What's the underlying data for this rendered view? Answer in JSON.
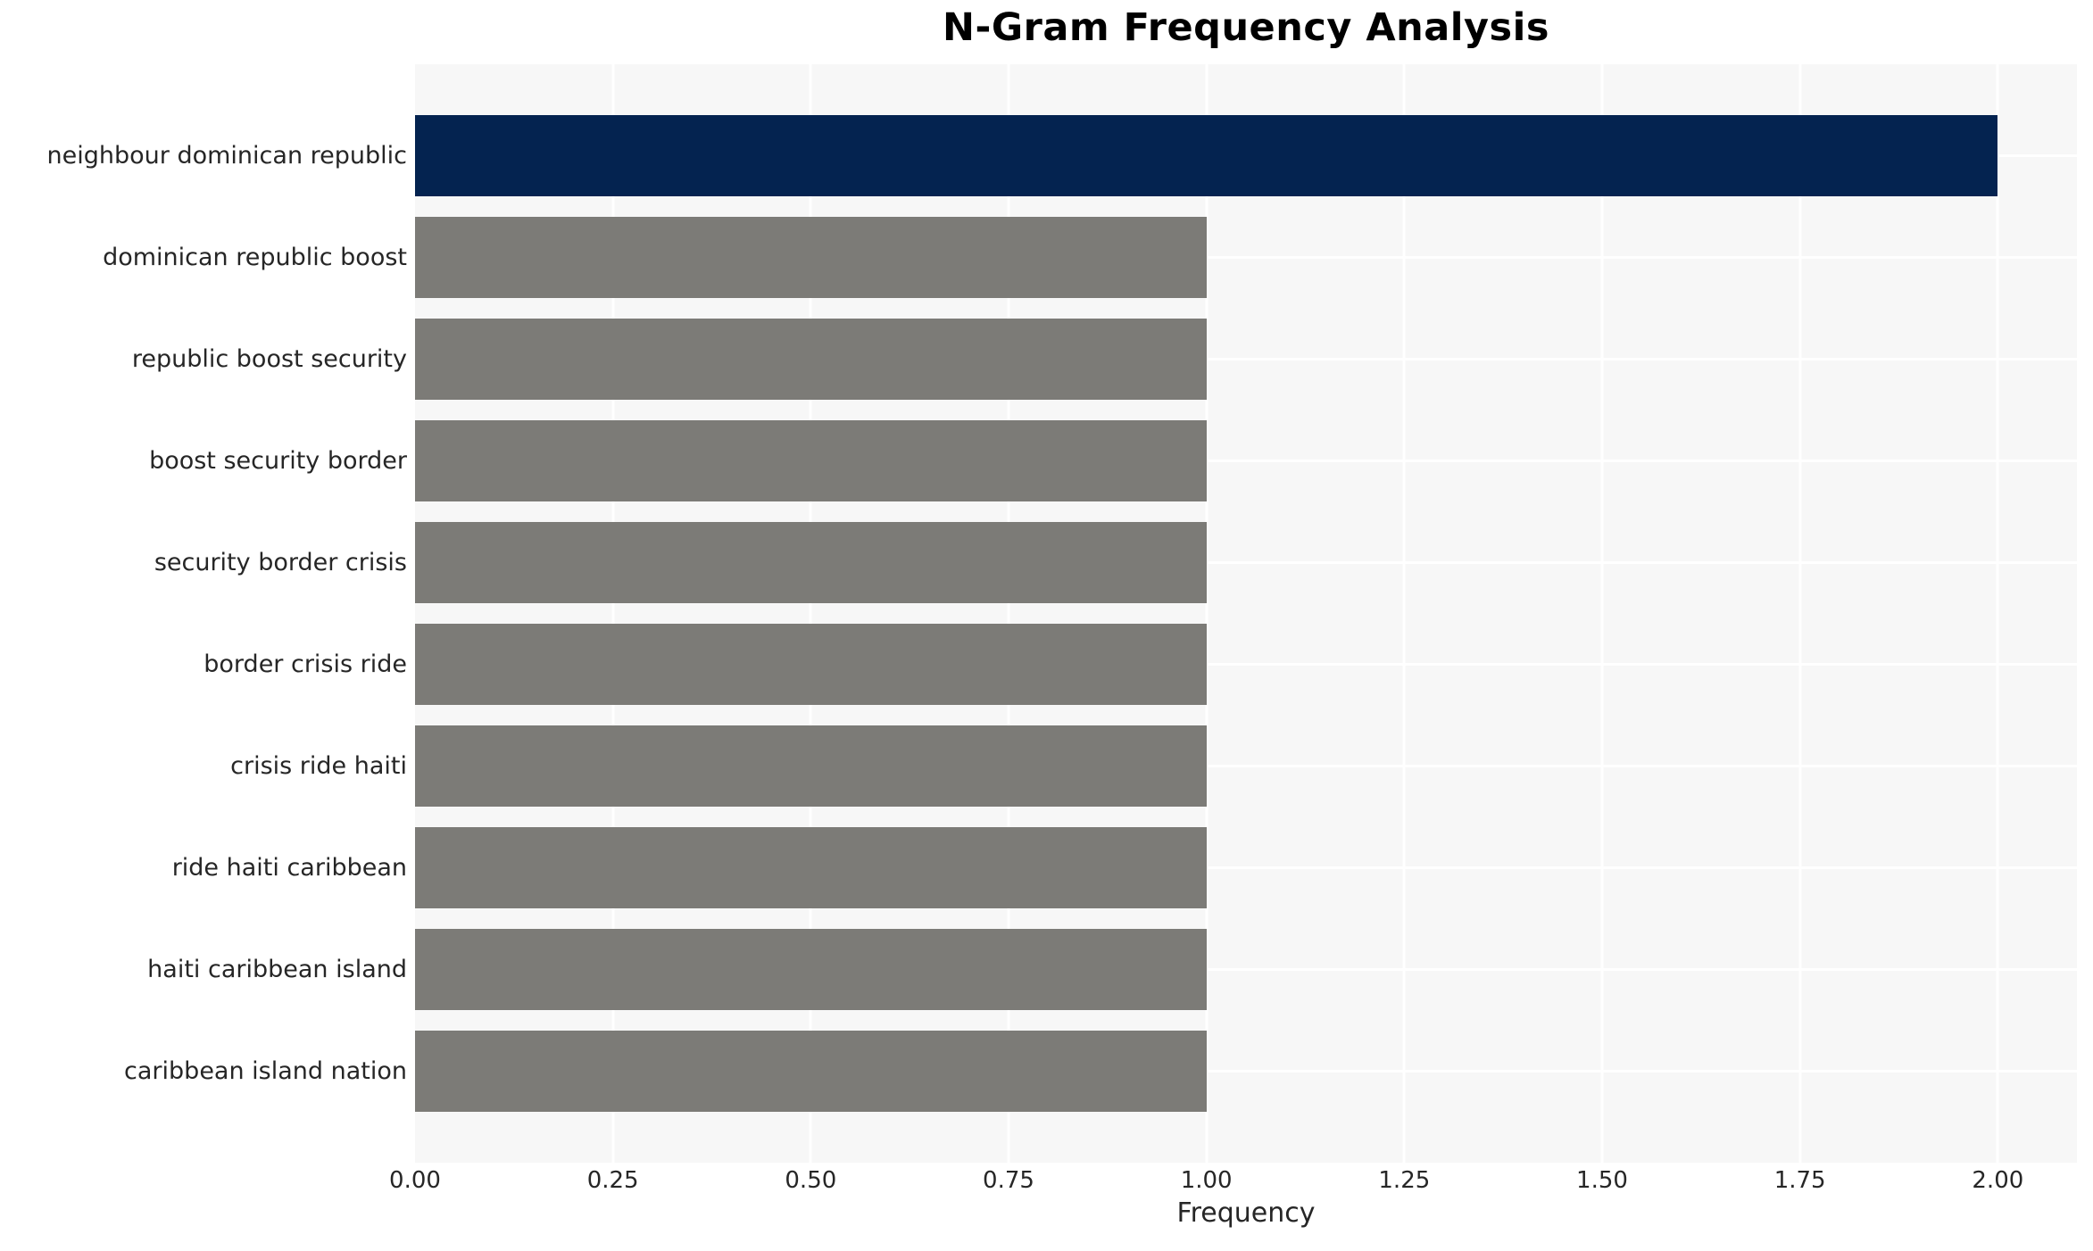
{
  "chart_data": {
    "type": "bar",
    "orientation": "horizontal",
    "title": "N-Gram Frequency Analysis",
    "xlabel": "Frequency",
    "ylabel": "",
    "categories": [
      "neighbour dominican republic",
      "dominican republic boost",
      "republic boost security",
      "boost security border",
      "security border crisis",
      "border crisis ride",
      "crisis ride haiti",
      "ride haiti caribbean",
      "haiti caribbean island",
      "caribbean island nation"
    ],
    "values": [
      2,
      1,
      1,
      1,
      1,
      1,
      1,
      1,
      1,
      1
    ],
    "bar_colors": [
      "#042350",
      "#7C7B77",
      "#7C7B77",
      "#7C7B77",
      "#7C7B77",
      "#7C7B77",
      "#7C7B77",
      "#7C7B77",
      "#7C7B77",
      "#7C7B77"
    ],
    "xlim": [
      0,
      2.1
    ],
    "xticks": [
      0,
      0.25,
      0.5,
      0.75,
      1.0,
      1.25,
      1.5,
      1.75,
      2.0
    ],
    "xtick_labels": [
      "0.00",
      "0.25",
      "0.50",
      "0.75",
      "1.00",
      "1.25",
      "1.50",
      "1.75",
      "2.00"
    ],
    "grid": true,
    "legend": false,
    "colors": {
      "plot_background": "#F7F7F7",
      "grid_color": "#FFFFFF",
      "accent_bar": "#042350",
      "default_bar": "#7C7B77",
      "text_color": "#262626",
      "title_color": "#000000"
    }
  }
}
